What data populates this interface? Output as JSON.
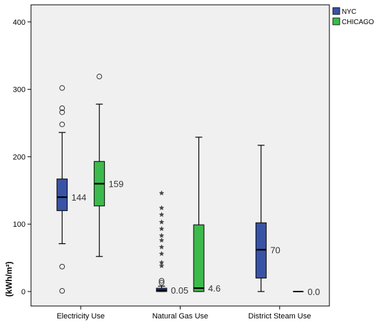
{
  "chart_data": {
    "type": "boxplot",
    "title": "",
    "xlabel": "",
    "ylabel": "(kWh/m²)",
    "ylim": [
      -20,
      430
    ],
    "y_ticks": [
      0,
      100,
      200,
      300,
      400
    ],
    "grid": false,
    "categories": [
      "Electricity Use",
      "Natural Gas Use",
      "District Steam Use"
    ],
    "legend": {
      "placement": "top-right",
      "entries": [
        {
          "name": "NYC",
          "color": "#3953a4"
        },
        {
          "name": "CHICAGO",
          "color": "#3dba4c"
        }
      ]
    },
    "series": [
      {
        "name": "NYC",
        "color": "#3953a4",
        "boxes": [
          {
            "category": "Electricity Use",
            "whisker_low": 71,
            "q1": 120,
            "median": 140,
            "q3": 167,
            "whisker_high": 236,
            "label": "144",
            "outliers": [
              {
                "value": 302,
                "shape": "circle"
              },
              {
                "value": 272,
                "shape": "circle"
              },
              {
                "value": 266,
                "shape": "circle"
              },
              {
                "value": 248,
                "shape": "circle"
              },
              {
                "value": 37,
                "shape": "circle"
              },
              {
                "value": 1,
                "shape": "circle"
              }
            ]
          },
          {
            "category": "Natural Gas Use",
            "whisker_low": 0,
            "q1": 0,
            "median": 2,
            "q3": 5,
            "whisker_high": 8,
            "label": "0.05",
            "outliers": [
              {
                "value": 146,
                "shape": "star"
              },
              {
                "value": 124,
                "shape": "star"
              },
              {
                "value": 114,
                "shape": "star"
              },
              {
                "value": 103,
                "shape": "star"
              },
              {
                "value": 93,
                "shape": "star"
              },
              {
                "value": 83,
                "shape": "star"
              },
              {
                "value": 76,
                "shape": "star"
              },
              {
                "value": 66,
                "shape": "star"
              },
              {
                "value": 56,
                "shape": "star"
              },
              {
                "value": 43,
                "shape": "star"
              },
              {
                "value": 38,
                "shape": "star"
              },
              {
                "value": 16,
                "shape": "circle"
              },
              {
                "value": 13,
                "shape": "circle"
              }
            ]
          },
          {
            "category": "District Steam Use",
            "whisker_low": 0,
            "q1": 20,
            "median": 62,
            "q3": 102,
            "whisker_high": 217,
            "label": "70",
            "outliers": []
          }
        ]
      },
      {
        "name": "CHICAGO",
        "color": "#3dba4c",
        "boxes": [
          {
            "category": "Electricity Use",
            "whisker_low": 52,
            "q1": 127,
            "median": 160,
            "q3": 193,
            "whisker_high": 278,
            "label": "159",
            "outliers": [
              {
                "value": 319,
                "shape": "circle"
              }
            ]
          },
          {
            "category": "Natural Gas Use",
            "whisker_low": 0,
            "q1": 0,
            "median": 5,
            "q3": 99,
            "whisker_high": 229,
            "label": "4.6",
            "outliers": []
          },
          {
            "category": "District Steam Use",
            "whisker_low": 0,
            "q1": 0,
            "median": 0,
            "q3": 0,
            "whisker_high": 0,
            "label": "0.0",
            "outliers": []
          }
        ]
      }
    ]
  }
}
